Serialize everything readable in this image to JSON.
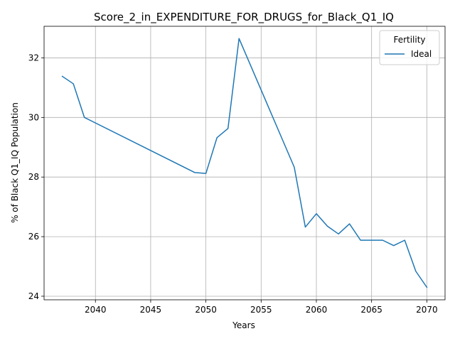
{
  "chart_data": {
    "type": "line",
    "title": "Score_2_in_EXPENDITURE_FOR_DRUGS_for_Black_Q1_IQ",
    "xlabel": "Years",
    "ylabel": "% of Black Q1_IQ Population",
    "xlim": [
      2035.35,
      2071.65
    ],
    "ylim": [
      23.88,
      33.06
    ],
    "xticks": [
      2040,
      2045,
      2050,
      2055,
      2060,
      2065,
      2070
    ],
    "yticks": [
      24,
      26,
      28,
      30,
      32
    ],
    "grid": true,
    "legend": {
      "title": "Fertility",
      "placement": "top-right"
    },
    "series": [
      {
        "name": "Ideal",
        "color": "#1f77b4",
        "x": [
          2037,
          2038,
          2039,
          2049,
          2050,
          2051,
          2052,
          2053,
          2058,
          2059,
          2060,
          2061,
          2062,
          2063,
          2064,
          2065,
          2066,
          2067,
          2068,
          2069,
          2070
        ],
        "y": [
          31.38,
          31.13,
          30.0,
          28.15,
          28.12,
          29.32,
          29.63,
          32.65,
          28.33,
          26.32,
          26.77,
          26.35,
          26.09,
          26.43,
          25.88,
          25.88,
          25.88,
          25.7,
          25.88,
          24.84,
          24.3
        ]
      }
    ]
  }
}
